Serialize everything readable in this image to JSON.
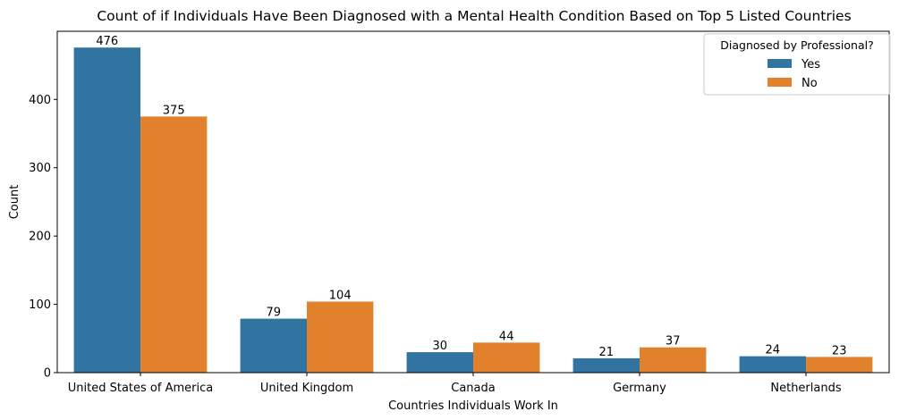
{
  "chart_data": {
    "type": "bar",
    "title": "Count of if Individuals Have Been Diagnosed with a Mental Health Condition Based on Top 5 Listed Countries",
    "xlabel": "Countries Individuals Work In",
    "ylabel": "Count",
    "categories": [
      "United States of America",
      "United Kingdom",
      "Canada",
      "Germany",
      "Netherlands"
    ],
    "series": [
      {
        "name": "Yes",
        "color": "#3274a1",
        "values": [
          476,
          79,
          30,
          21,
          24
        ]
      },
      {
        "name": "No",
        "color": "#e1812c",
        "values": [
          375,
          104,
          44,
          37,
          23
        ]
      }
    ],
    "ylim": [
      0,
      499.8
    ],
    "yticks": [
      0,
      100,
      200,
      300,
      400
    ],
    "legend": {
      "title": "Diagnosed by Professional?",
      "position": "top-right"
    },
    "grid": false
  }
}
